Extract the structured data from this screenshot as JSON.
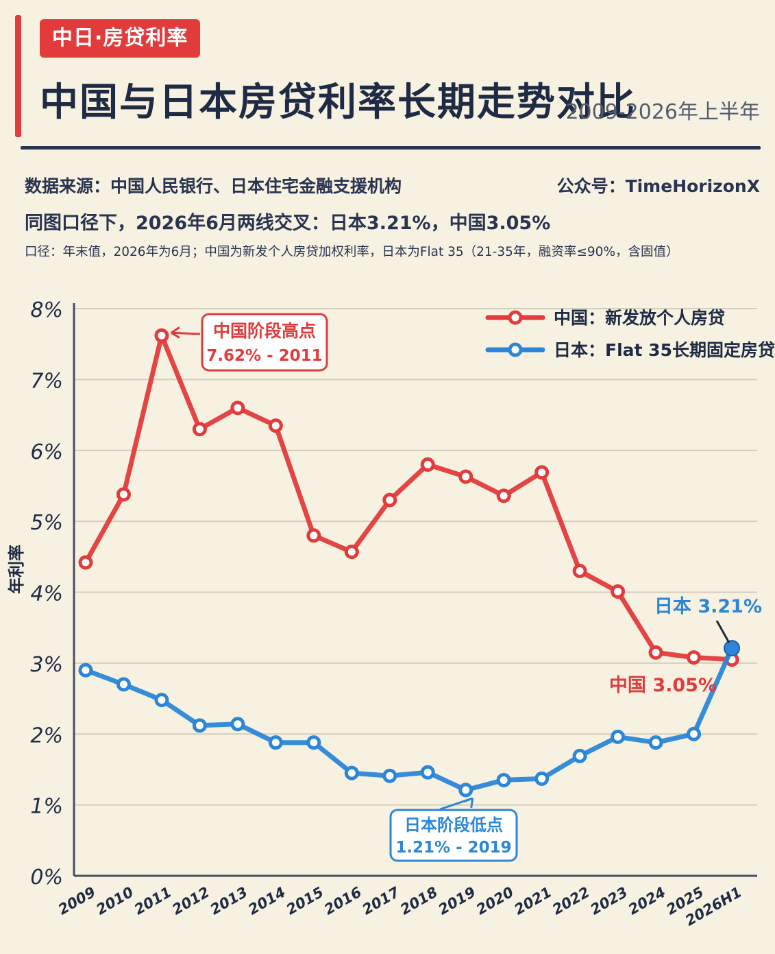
{
  "header": {
    "tag": "中日·房贷利率",
    "title": "中国与日本房贷利率长期走势对比",
    "range": "2009-2026年上半年",
    "source": "数据来源：中国人民银行、日本住宅金融支援机构",
    "account": "公众号：TimeHorizonX",
    "crossover": "同图口径下，2026年6月两线交叉：日本3.21%，中国3.05%",
    "caliber": "口径：年末值，2026年为6月；中国为新发个人房贷加权利率，日本为Flat 35（21-35年，融资率≤90%，含固值）"
  },
  "colors": {
    "china": "#e23b3b",
    "japan": "#2b86d8",
    "ink": "#1f2a44",
    "accent": "#e23b3b"
  },
  "chart_data": {
    "type": "line",
    "title": "中国与日本房贷利率长期走势对比",
    "ylabel": "年利率",
    "xlabel": "",
    "ylim": [
      0,
      8
    ],
    "grid": true,
    "legend_position": "top-right",
    "y_ticks": [
      "0%",
      "1%",
      "2%",
      "3%",
      "4%",
      "5%",
      "6%",
      "7%",
      "8%"
    ],
    "categories": [
      "2009",
      "2010",
      "2011",
      "2012",
      "2013",
      "2014",
      "2015",
      "2016",
      "2017",
      "2018",
      "2019",
      "2020",
      "2021",
      "2022",
      "2023",
      "2024",
      "2025",
      "2026H1"
    ],
    "series": [
      {
        "name": "中国：新发放个人房贷",
        "color": "#e23b3b",
        "values": [
          4.42,
          5.38,
          7.62,
          6.3,
          6.6,
          6.35,
          4.8,
          4.57,
          5.3,
          5.8,
          5.63,
          5.36,
          5.69,
          4.3,
          4.01,
          3.15,
          3.08,
          3.05
        ]
      },
      {
        "name": "日本：Flat 35长期固定房贷",
        "color": "#2b86d8",
        "values": [
          2.9,
          2.7,
          2.48,
          2.12,
          2.14,
          1.88,
          1.88,
          1.45,
          1.41,
          1.46,
          1.21,
          1.35,
          1.37,
          1.69,
          1.96,
          1.88,
          2.0,
          3.21
        ]
      }
    ],
    "annotations": {
      "china_peak": {
        "line1": "中国阶段高点",
        "line2": "7.62% - 2011"
      },
      "japan_low": {
        "line1": "日本阶段低点",
        "line2": "1.21% - 2019"
      },
      "japan_end": "日本 3.21%",
      "china_end": "中国 3.05%"
    }
  }
}
